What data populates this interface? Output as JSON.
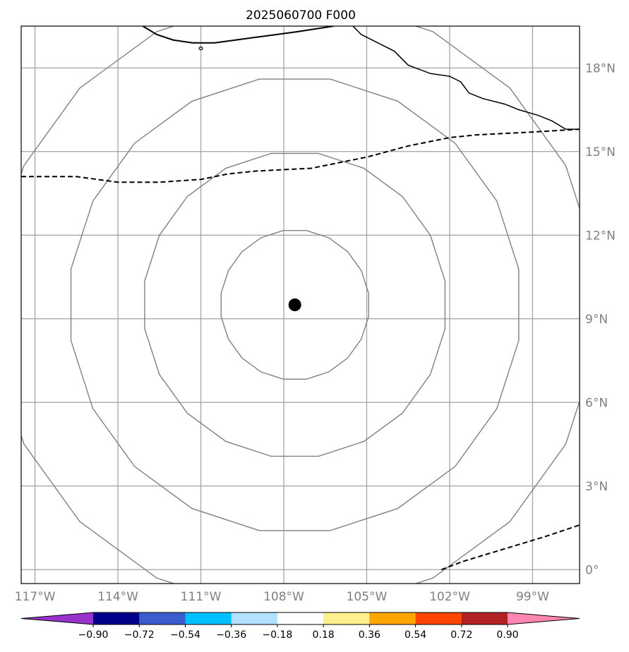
{
  "title": "2025060700 F000",
  "map": {
    "lon_range": [
      -117.5,
      -97.3
    ],
    "lat_range": [
      -0.5,
      19.5
    ],
    "lon_ticks": [
      -117,
      -114,
      -111,
      -108,
      -105,
      -102,
      -99
    ],
    "lat_ticks": [
      0,
      3,
      6,
      9,
      12,
      15,
      18
    ],
    "lon_labels": [
      "117°W",
      "114°W",
      "111°W",
      "108°W",
      "105°W",
      "102°W",
      "99°W"
    ],
    "lat_labels": [
      "0°",
      "3°N",
      "6°N",
      "9°N",
      "12°N",
      "15°N",
      "18°N"
    ],
    "grid": true,
    "grid_color": "#a0a0a0",
    "center_marker": {
      "lon": -107.6,
      "lat": 9.5,
      "color": "#000000"
    },
    "range_rings_deg": [
      2.7,
      5.5,
      8.2,
      11.0
    ],
    "ring_color": "#808080",
    "coastline": [
      [
        -113.1,
        19.5
      ],
      [
        -112.6,
        19.2
      ],
      [
        -112.0,
        19.0
      ],
      [
        -111.3,
        18.9
      ],
      [
        -110.5,
        18.9
      ],
      [
        -109.0,
        19.1
      ],
      [
        -107.5,
        19.3
      ],
      [
        -106.2,
        19.5
      ]
    ],
    "coastline_east": [
      [
        -105.5,
        19.5
      ],
      [
        -105.2,
        19.2
      ],
      [
        -104.6,
        18.9
      ],
      [
        -104.0,
        18.6
      ],
      [
        -103.5,
        18.1
      ],
      [
        -102.7,
        17.8
      ],
      [
        -102.0,
        17.7
      ],
      [
        -101.6,
        17.5
      ],
      [
        -101.3,
        17.1
      ],
      [
        -100.8,
        16.9
      ],
      [
        -100.0,
        16.7
      ],
      [
        -99.5,
        16.5
      ],
      [
        -98.8,
        16.3
      ],
      [
        -98.3,
        16.1
      ],
      [
        -97.8,
        15.8
      ],
      [
        -97.3,
        15.8
      ]
    ],
    "dashed_boundary_north": [
      [
        -117.5,
        14.1
      ],
      [
        -115.5,
        14.1
      ],
      [
        -114.0,
        13.9
      ],
      [
        -112.5,
        13.9
      ],
      [
        -111.0,
        14.0
      ],
      [
        -110.0,
        14.2
      ],
      [
        -109.0,
        14.3
      ],
      [
        -107.0,
        14.4
      ],
      [
        -105.0,
        14.8
      ],
      [
        -103.5,
        15.2
      ],
      [
        -102.0,
        15.5
      ],
      [
        -101.0,
        15.6
      ],
      [
        -99.0,
        15.7
      ],
      [
        -97.3,
        15.8
      ]
    ],
    "dashed_boundary_south": [
      [
        -102.3,
        0.0
      ],
      [
        -101.5,
        0.3
      ],
      [
        -100.5,
        0.6
      ],
      [
        -99.5,
        0.9
      ],
      [
        -98.5,
        1.2
      ],
      [
        -97.3,
        1.6
      ]
    ]
  },
  "colorbar": {
    "colors": [
      "#9932cc",
      "#00008b",
      "#3a5fcd",
      "#00bfff",
      "#b0e2ff",
      "#ffffff",
      "#fff08f",
      "#ffa500",
      "#ff4500",
      "#b22222",
      "#ff86b0"
    ],
    "tick_labels": [
      "−0.90",
      "−0.72",
      "−0.54",
      "−0.36",
      "−0.18",
      "0.18",
      "0.36",
      "0.54",
      "0.72",
      "0.90"
    ]
  }
}
